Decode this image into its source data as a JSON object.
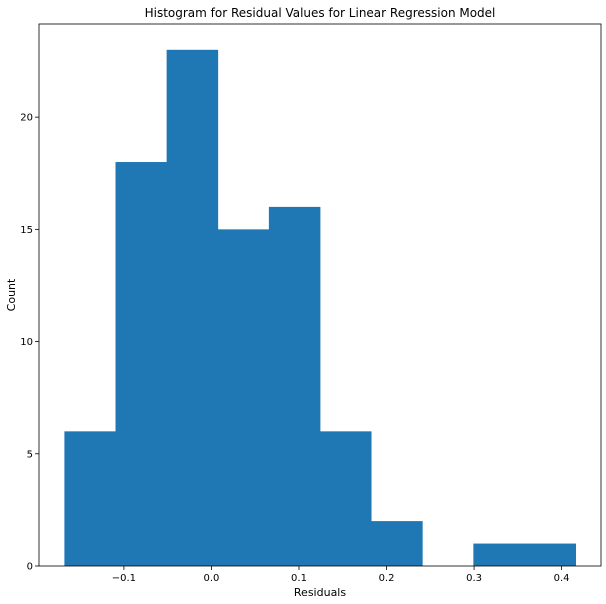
{
  "chart_data": {
    "type": "bar",
    "title": "Histogram for Residual Values for Linear Regression Model",
    "xlabel": "Residuals",
    "ylabel": "Count",
    "bin_edges": [
      -0.168,
      -0.1096,
      -0.0512,
      0.0072,
      0.0656,
      0.124,
      0.1824,
      0.2408,
      0.2992,
      0.3576,
      0.416
    ],
    "values": [
      6,
      18,
      23,
      15,
      16,
      6,
      2,
      0,
      1,
      1
    ],
    "xlim": [
      -0.197,
      0.445
    ],
    "ylim": [
      0,
      24.15
    ],
    "xticks": [
      -0.1,
      0.0,
      0.1,
      0.2,
      0.3,
      0.4
    ],
    "xtick_labels": [
      "−0.1",
      "0.0",
      "0.1",
      "0.2",
      "0.3",
      "0.4"
    ],
    "yticks": [
      0,
      5,
      10,
      15,
      20
    ],
    "ytick_labels": [
      "0",
      "5",
      "10",
      "15",
      "20"
    ],
    "bar_color": "#1f77b4",
    "grid": false
  }
}
